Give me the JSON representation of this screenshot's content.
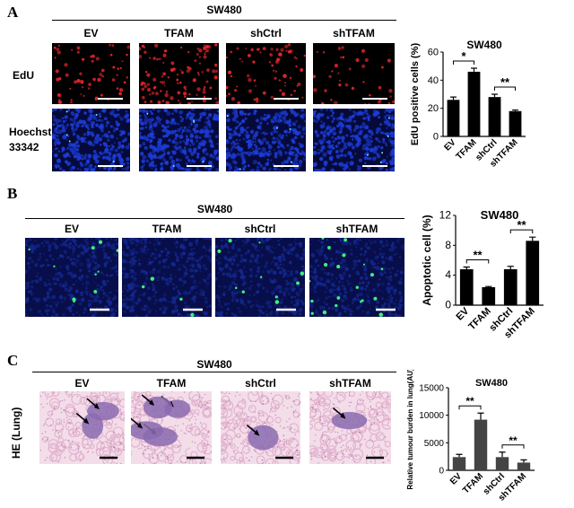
{
  "panel_a": {
    "letter": "A",
    "cell_line": "SW480",
    "columns": [
      "EV",
      "TFAM",
      "shCtrl",
      "shTFAM"
    ],
    "rows": [
      "EdU",
      "Hoechst 33342"
    ],
    "channel_colors": {
      "edu": "#e4252b",
      "hoechst": "#1c3bd6"
    }
  },
  "panel_b": {
    "letter": "B",
    "cell_line": "SW480",
    "columns": [
      "EV",
      "TFAM",
      "shCtrl",
      "shTFAM"
    ],
    "channel_colors": {
      "background": "#14278e",
      "tunel": "#3df27a"
    }
  },
  "panel_c": {
    "letter": "C",
    "cell_line": "SW480",
    "columns": [
      "EV",
      "TFAM",
      "shCtrl",
      "shTFAM"
    ],
    "row_label": "HE (Lung)",
    "stain_colors": {
      "tissue": "#e3b4cf",
      "nodule": "#8a6bb0"
    }
  },
  "chart_data": [
    {
      "type": "bar",
      "title": "SW480",
      "ylabel": "EdU positive cells (%)",
      "categories": [
        "EV",
        "TFAM",
        "shCtrl",
        "shTFAM"
      ],
      "values": [
        26,
        46,
        28,
        18
      ],
      "errors": [
        2,
        2.5,
        2,
        0.8
      ],
      "ylim": [
        0,
        60
      ],
      "yticks": [
        0,
        20,
        40,
        60
      ],
      "significance": [
        {
          "pair": [
            0,
            1
          ],
          "label": "*"
        },
        {
          "pair": [
            2,
            3
          ],
          "label": "**"
        }
      ]
    },
    {
      "type": "bar",
      "title": "SW480",
      "ylabel": "Apoptotic cell (%)",
      "categories": [
        "EV",
        "TFAM",
        "shCtrl",
        "shTFAM"
      ],
      "values": [
        4.8,
        2.4,
        4.8,
        8.6
      ],
      "errors": [
        0.3,
        0.1,
        0.4,
        0.5
      ],
      "ylim": [
        0,
        12
      ],
      "yticks": [
        0,
        4,
        8,
        12
      ],
      "significance": [
        {
          "pair": [
            0,
            1
          ],
          "label": "**"
        },
        {
          "pair": [
            2,
            3
          ],
          "label": "**"
        }
      ]
    },
    {
      "type": "bar",
      "title": "SW480",
      "ylabel": "Relative tumour burden in lung(AU)",
      "categories": [
        "EV",
        "TFAM",
        "shCtrl",
        "shTFAM"
      ],
      "values": [
        2400,
        9200,
        2400,
        1400
      ],
      "errors": [
        500,
        1200,
        900,
        500
      ],
      "ylim": [
        0,
        15000
      ],
      "yticks": [
        0,
        5000,
        10000,
        15000
      ],
      "significance": [
        {
          "pair": [
            0,
            1
          ],
          "label": "**"
        },
        {
          "pair": [
            2,
            3
          ],
          "label": "**"
        }
      ]
    }
  ]
}
